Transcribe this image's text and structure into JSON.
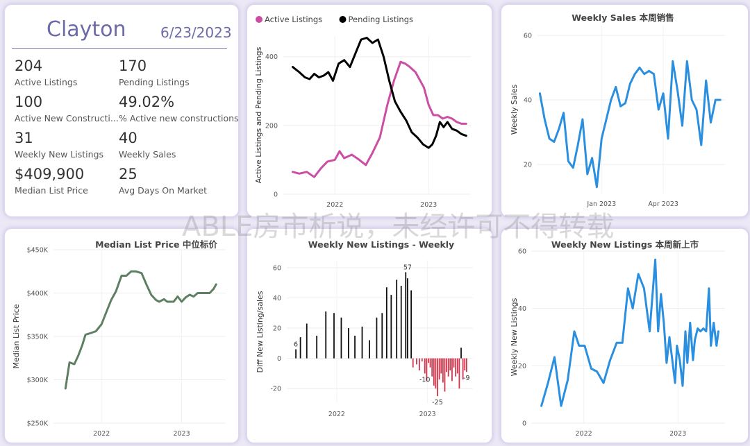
{
  "kpi": {
    "city": "Clayton",
    "date": "6/23/2023",
    "items": [
      {
        "value": "204",
        "label": "Active Listings"
      },
      {
        "value": "170",
        "label": "Pending Listings"
      },
      {
        "value": "100",
        "label": "Active New Constructi..."
      },
      {
        "value": "49.02%",
        "label": "% Active new constructions"
      },
      {
        "value": "31",
        "label": "Weekly New Listings"
      },
      {
        "value": "40",
        "label": "Weekly Sales"
      },
      {
        "value": "$409,900",
        "label": "Median List Price"
      },
      {
        "value": "25",
        "label": "Avg Days On Market"
      }
    ]
  },
  "watermark": "ABLE房市析说，未经许可不得转载",
  "chart_data": [
    {
      "type": "line",
      "title": "",
      "xlabel": "",
      "ylabel": "Active Listings and Pending Listings",
      "x_ticks": [
        {
          "label": "2022",
          "x": 2022.0
        },
        {
          "label": "2023",
          "x": 2023.0
        }
      ],
      "y_ticks": [
        0,
        200,
        400
      ],
      "xlim": [
        2021.45,
        2023.45
      ],
      "ylim": [
        0,
        460
      ],
      "legend": "top-left",
      "series": [
        {
          "name": "Active Listings",
          "color": "#cc4ea4",
          "x": [
            2021.55,
            2021.62,
            2021.7,
            2021.78,
            2021.85,
            2021.92,
            2022.0,
            2022.05,
            2022.1,
            2022.18,
            2022.26,
            2022.33,
            2022.4,
            2022.48,
            2022.56,
            2022.63,
            2022.7,
            2022.75,
            2022.8,
            2022.86,
            2022.9,
            2022.95,
            2023.0,
            2023.05,
            2023.1,
            2023.15,
            2023.2,
            2023.25,
            2023.3,
            2023.35,
            2023.4
          ],
          "values": [
            65,
            60,
            65,
            50,
            75,
            95,
            100,
            125,
            105,
            115,
            100,
            85,
            120,
            165,
            260,
            330,
            385,
            380,
            370,
            355,
            335,
            310,
            260,
            230,
            230,
            220,
            225,
            220,
            210,
            205,
            205
          ]
        },
        {
          "name": "Pending Listings",
          "color": "#000000",
          "x": [
            2021.55,
            2021.62,
            2021.68,
            2021.73,
            2021.78,
            2021.83,
            2021.88,
            2021.93,
            2021.98,
            2022.04,
            2022.1,
            2022.16,
            2022.22,
            2022.28,
            2022.34,
            2022.4,
            2022.46,
            2022.52,
            2022.58,
            2022.64,
            2022.7,
            2022.76,
            2022.82,
            2022.88,
            2022.94,
            2023.0,
            2023.04,
            2023.08,
            2023.12,
            2023.16,
            2023.2,
            2023.25,
            2023.3,
            2023.35,
            2023.4
          ],
          "values": [
            370,
            355,
            340,
            335,
            350,
            340,
            345,
            355,
            330,
            380,
            390,
            370,
            410,
            450,
            455,
            440,
            450,
            400,
            330,
            270,
            240,
            215,
            180,
            165,
            145,
            135,
            145,
            170,
            210,
            195,
            210,
            190,
            185,
            175,
            170
          ]
        }
      ]
    },
    {
      "type": "line",
      "title": "Weekly Sales 本周销售",
      "xlabel": "",
      "ylabel": "Weekly Sales",
      "x_ticks": [
        {
          "label": "Jan 2023",
          "x": 13
        },
        {
          "label": "Apr 2023",
          "x": 26
        }
      ],
      "y_ticks": [
        20,
        40,
        60
      ],
      "xlim": [
        -0.5,
        39
      ],
      "ylim": [
        11,
        63
      ],
      "legend": "none",
      "series": [
        {
          "name": "",
          "color": "#2b8fdf",
          "x": [
            0,
            1,
            2,
            3,
            4,
            5,
            6,
            7,
            8,
            9,
            10,
            11,
            12,
            13,
            14,
            15,
            16,
            17,
            18,
            19,
            20,
            21,
            22,
            23,
            24,
            25,
            26,
            27,
            28,
            29,
            30,
            31,
            32,
            33,
            34,
            35,
            36,
            37,
            38
          ],
          "values": [
            42,
            34,
            28,
            27,
            31,
            36,
            21,
            19,
            26,
            34,
            17,
            22,
            13,
            28,
            34,
            40,
            44,
            38,
            39,
            45,
            48,
            50,
            48,
            49,
            48,
            37,
            42,
            28,
            52,
            43,
            32,
            52,
            40,
            37,
            26,
            46,
            33,
            40,
            40
          ]
        }
      ]
    },
    {
      "type": "line",
      "title": "Median List Price  中位标价",
      "xlabel": "",
      "ylabel": "Median List Price",
      "x_ticks": [
        {
          "label": "2022",
          "x": 2022.0
        },
        {
          "label": "2023",
          "x": 2023.0
        }
      ],
      "y_ticks": [
        250000,
        300000,
        350000,
        400000,
        450000
      ],
      "y_tick_labels": [
        "$250K",
        "$300K",
        "$350K",
        "$400K",
        "$450K"
      ],
      "xlim": [
        2021.4,
        2023.55
      ],
      "ylim": [
        250000,
        450000
      ],
      "legend": "none",
      "series": [
        {
          "name": "",
          "color": "#5e7f62",
          "x": [
            2021.55,
            2021.6,
            2021.66,
            2021.71,
            2021.76,
            2021.8,
            2021.87,
            2021.93,
            2022.0,
            2022.06,
            2022.12,
            2022.18,
            2022.25,
            2022.31,
            2022.37,
            2022.43,
            2022.5,
            2022.56,
            2022.62,
            2022.68,
            2022.72,
            2022.78,
            2022.82,
            2022.86,
            2022.9,
            2022.95,
            2023.0,
            2023.05,
            2023.1,
            2023.15,
            2023.2,
            2023.25,
            2023.3,
            2023.35,
            2023.4,
            2023.43
          ],
          "values": [
            290000,
            320000,
            318000,
            328000,
            340000,
            352000,
            354000,
            356000,
            364000,
            378000,
            392000,
            402000,
            420000,
            420000,
            425000,
            425000,
            423000,
            410000,
            398000,
            392000,
            390000,
            393000,
            390000,
            390000,
            390000,
            396000,
            390000,
            395000,
            398000,
            396000,
            400000,
            400000,
            400000,
            400000,
            405000,
            410000
          ]
        }
      ]
    },
    {
      "type": "bar",
      "title": "Weekly New Listings - Weekly",
      "xlabel": "",
      "ylabel": "Diff New Listing/sales",
      "x_ticks": [
        {
          "label": "2022",
          "x": 2022.0
        },
        {
          "label": "2023",
          "x": 2023.0
        }
      ],
      "y_ticks": [
        -20,
        0,
        20,
        40,
        60
      ],
      "xlim": [
        2021.45,
        2023.5
      ],
      "ylim": [
        -30,
        65
      ],
      "data_labels": [
        {
          "text": "6",
          "x": 2021.55,
          "y": 6
        },
        {
          "text": "57",
          "x": 2022.78,
          "y": 57
        },
        {
          "text": "-10",
          "x": 2022.97,
          "y": -10
        },
        {
          "text": "-25",
          "x": 2023.11,
          "y": -25
        },
        {
          "text": "-9",
          "x": 2023.43,
          "y": -9
        }
      ],
      "series": [
        {
          "name": "",
          "color_pos": "#111111",
          "color_neg": "#d0344b",
          "x": [
            2021.55,
            2021.6,
            2021.67,
            2021.78,
            2021.88,
            2021.97,
            2022.05,
            2022.13,
            2022.2,
            2022.28,
            2022.36,
            2022.44,
            2022.5,
            2022.55,
            2022.6,
            2022.66,
            2022.71,
            2022.76,
            2022.78,
            2022.82,
            2022.84,
            2022.88,
            2022.91,
            2022.94,
            2022.97,
            2022.99,
            2023.01,
            2023.03,
            2023.05,
            2023.07,
            2023.09,
            2023.11,
            2023.13,
            2023.15,
            2023.17,
            2023.19,
            2023.21,
            2023.23,
            2023.25,
            2023.27,
            2023.29,
            2023.31,
            2023.33,
            2023.35,
            2023.37,
            2023.39,
            2023.41,
            2023.43
          ],
          "values": [
            6,
            14,
            23,
            15,
            31,
            30,
            27,
            20,
            15,
            21,
            12,
            27,
            30,
            47,
            42,
            52,
            48,
            57,
            53,
            45,
            -6,
            -4,
            -8,
            -2,
            -10,
            -15,
            -3,
            -6,
            -12,
            -18,
            -20,
            -25,
            -14,
            -10,
            -16,
            -22,
            -9,
            -12,
            -8,
            -15,
            -6,
            -12,
            -10,
            -20,
            7,
            -14,
            -8,
            -9
          ]
        }
      ]
    },
    {
      "type": "line",
      "title": "Weekly New Listings  本周新上市",
      "xlabel": "",
      "ylabel": "Weekly New Listings",
      "x_ticks": [
        {
          "label": "2022",
          "x": 2022.0
        },
        {
          "label": "2023",
          "x": 2023.0
        }
      ],
      "y_ticks": [
        0,
        20,
        40,
        60
      ],
      "xlim": [
        2021.45,
        2023.5
      ],
      "ylim": [
        0,
        60
      ],
      "legend": "none",
      "series": [
        {
          "name": "",
          "color": "#2b8fdf",
          "x": [
            2021.55,
            2021.62,
            2021.69,
            2021.76,
            2021.83,
            2021.9,
            2021.95,
            2022.01,
            2022.08,
            2022.14,
            2022.21,
            2022.28,
            2022.35,
            2022.41,
            2022.47,
            2022.52,
            2022.58,
            2022.64,
            2022.7,
            2022.76,
            2022.79,
            2022.82,
            2022.85,
            2022.88,
            2022.91,
            2022.94,
            2022.97,
            2022.99,
            2023.02,
            2023.05,
            2023.08,
            2023.1,
            2023.13,
            2023.16,
            2023.18,
            2023.21,
            2023.24,
            2023.27,
            2023.3,
            2023.33,
            2023.35,
            2023.38,
            2023.41,
            2023.43
          ],
          "values": [
            6,
            14,
            23,
            6,
            15,
            32,
            27,
            27,
            19,
            18,
            14,
            22,
            28,
            28,
            47,
            40,
            52,
            47,
            32,
            57,
            32,
            45,
            35,
            21,
            30,
            22,
            14,
            27,
            22,
            13,
            32,
            21,
            35,
            22,
            29,
            33,
            32,
            33,
            32,
            47,
            27,
            35,
            27,
            32
          ]
        }
      ]
    }
  ]
}
